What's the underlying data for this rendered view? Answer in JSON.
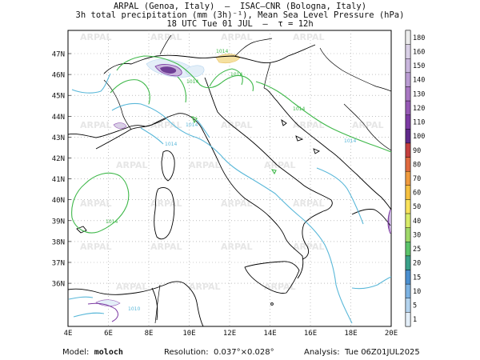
{
  "header": {
    "line1": "ARPAL (Genoa, Italy)  –  ISAC–CNR (Bologna, Italy)",
    "line2": "3h total precipitation (mm (3h)⁻¹), Mean Sea Level Pressure (hPa)",
    "line3": "18 UTC Tue 01 JUL  –  τ = 12h"
  },
  "watermark": "ARPAL",
  "axes": {
    "lat_labels": [
      "47N",
      "46N",
      "45N",
      "44N",
      "43N",
      "42N",
      "41N",
      "40N",
      "39N",
      "38N",
      "37N",
      "36N"
    ],
    "lon_labels": [
      "4E",
      "6E",
      "8E",
      "10E",
      "12E",
      "14E",
      "16E",
      "18E",
      "20E"
    ]
  },
  "isobar_labels": [
    "1014",
    "1014",
    "1014",
    "1014",
    "1014",
    "1014",
    "1014",
    "1014",
    "1010"
  ],
  "colorbar": {
    "labels": [
      "180",
      "160",
      "150",
      "140",
      "130",
      "120",
      "110",
      "100",
      "90",
      "80",
      "70",
      "60",
      "50",
      "40",
      "30",
      "25",
      "20",
      "15",
      "10",
      "5",
      "1"
    ],
    "colors": [
      "#ececec",
      "#d9d0e6",
      "#c9b6dd",
      "#b99bd2",
      "#a878c2",
      "#9559b4",
      "#7c3aa3",
      "#5f2a8a",
      "#c33e3e",
      "#df6a3f",
      "#ef9a3e",
      "#f5c040",
      "#f8e25b",
      "#d8ec6a",
      "#9fd86a",
      "#5cc36a",
      "#3aa08a",
      "#4b8fcf",
      "#7cb2e2",
      "#b3d3ee",
      "#e4eff8"
    ]
  },
  "footer": {
    "model_label": "Model:",
    "model_value": "moloch",
    "resolution_label": "Resolution:",
    "resolution_value": "0.037°×0.028°",
    "analysis_label": "Analysis:",
    "analysis_value": "Tue 06Z01JUL2025"
  }
}
